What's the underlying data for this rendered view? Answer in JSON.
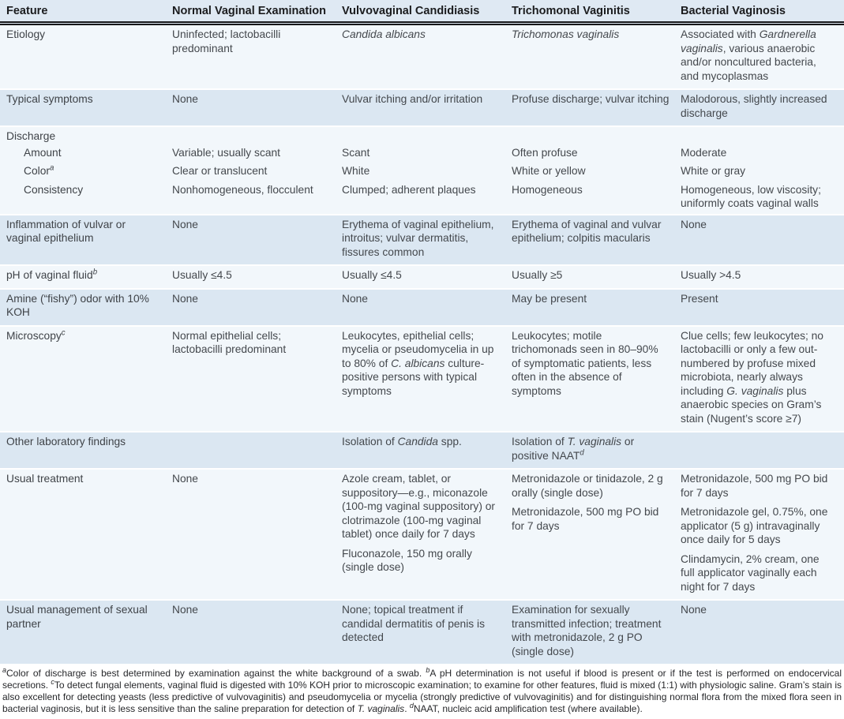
{
  "colors": {
    "header_background": "#dfe9f3",
    "row_blue": "#dbe7f2",
    "row_light": "#f2f7fb",
    "rule": "#17181a",
    "body_text": "#44484d",
    "header_text": "#1b1c1e"
  },
  "table": {
    "columns": [
      {
        "id": "feature",
        "label": "Feature"
      },
      {
        "id": "normal-vaginal-examination",
        "label": "Normal Vaginal Examination"
      },
      {
        "id": "vulvovaginal-candidiasis",
        "label": "Vulvovaginal Candidiasis"
      },
      {
        "id": "trichomonal-vaginitis",
        "label": "Trichomonal Vaginitis"
      },
      {
        "id": "bacterial-vaginosis",
        "label": "Bacterial Vaginosis"
      }
    ],
    "rows": [
      {
        "feature": "Etiology",
        "sub": false,
        "sep": false,
        "group_head": false,
        "shade": "light",
        "cells": [
          "Uninfected; lactobacilli predominant",
          "*Candida albicans*",
          "*Trichomonas vaginalis*",
          "Associated with *Gardnerella vaginalis*, various anaerobic and/or noncultured bacteria, and mycoplasmas"
        ]
      },
      {
        "feature": "Typical symptoms",
        "sub": false,
        "sep": true,
        "group_head": false,
        "shade": "blue",
        "cells": [
          "None",
          "Vulvar itching and/or irritation",
          "Profuse discharge; vulvar itching",
          "Malodorous, slightly increased discharge"
        ]
      },
      {
        "feature": "Discharge",
        "sub": false,
        "sep": true,
        "group_head": true,
        "shade": "light",
        "cells": [
          "",
          "",
          "",
          ""
        ]
      },
      {
        "feature": "Amount",
        "sub": true,
        "sep": false,
        "group_head": false,
        "shade": "light",
        "cells": [
          "Variable; usually scant",
          "Scant",
          "Often profuse",
          "Moderate"
        ]
      },
      {
        "feature": "Color^a^",
        "sub": true,
        "sep": false,
        "group_head": false,
        "shade": "light",
        "cells": [
          "Clear or translucent",
          "White",
          "White or yellow",
          "White or gray"
        ]
      },
      {
        "feature": "Consistency",
        "sub": true,
        "sep": false,
        "group_head": false,
        "shade": "light",
        "cells": [
          "Nonhomogeneous, flocculent",
          "Clumped; adherent plaques",
          "Homogeneous",
          "Homogeneous, low viscosity; uniformly coats vaginal walls"
        ]
      },
      {
        "feature": "Inflammation of vulvar or vaginal epithelium",
        "sub": false,
        "sep": true,
        "group_head": false,
        "shade": "blue",
        "cells": [
          "None",
          "Erythema of vaginal epithelium, introitus; vulvar dermatitis, fissures common",
          "Erythema of vaginal and vulvar epithelium; colpitis macularis",
          "None"
        ]
      },
      {
        "feature": "pH of vaginal fluid^b^",
        "sub": false,
        "sep": true,
        "group_head": false,
        "shade": "light",
        "cells": [
          "Usually ≤4.5",
          "Usually ≤4.5",
          "Usually ≥5",
          "Usually >4.5"
        ]
      },
      {
        "feature": "Amine (“fishy”) odor with 10% KOH",
        "sub": false,
        "sep": true,
        "group_head": false,
        "shade": "blue",
        "cells": [
          "None",
          "None",
          "May be present",
          "Present"
        ]
      },
      {
        "feature": "Microscopy^c^",
        "sub": false,
        "sep": true,
        "group_head": false,
        "shade": "light",
        "cells": [
          "Normal epithelial cells; lactobacilli predominant",
          "Leukocytes, epithelial cells; mycelia or pseudomycelia in up to 80% of *C. albicans* culture-positive persons with typical symptoms",
          "Leukocytes; motile trichomonads seen in 80–90% of symptomatic patients, less often in the absence of symptoms",
          "Clue cells; few leukocytes; no lactobacilli or only a few out-numbered by profuse mixed microbiota, nearly always including *G. vaginalis* plus anaerobic species on Gram’s stain (Nugent’s score ≥7)"
        ]
      },
      {
        "feature": "Other laboratory findings",
        "sub": false,
        "sep": true,
        "group_head": false,
        "shade": "blue",
        "cells": [
          "",
          "Isolation of *Candida* spp.",
          "Isolation of *T. vaginalis* or positive NAAT^d^",
          ""
        ]
      },
      {
        "feature": "Usual treatment",
        "sub": false,
        "sep": true,
        "group_head": false,
        "shade": "light",
        "cells": [
          "None",
          [
            "Azole cream, tablet, or suppository—e.g., miconazole (100-mg vaginal suppository) or clotrimazole (100-mg vaginal tablet) once daily for 7 days",
            "Fluconazole, 150 mg orally (single dose)"
          ],
          [
            "Metronidazole or tinidazole, 2 g orally (single dose)",
            "Metronidazole, 500 mg PO bid for 7 days"
          ],
          [
            "Metronidazole, 500 mg PO bid for 7 days",
            "Metronidazole gel, 0.75%, one applicator (5 g) intravaginally once daily for 5 days",
            "Clindamycin, 2% cream, one full applicator vaginally each night for 7 days"
          ]
        ]
      },
      {
        "feature": "Usual management of sexual partner",
        "sub": false,
        "sep": true,
        "group_head": false,
        "shade": "blue",
        "cells": [
          "None",
          "None; topical treatment if candidal dermatitis of penis is detected",
          "Examination for sexually transmitted infection; treatment with metronidazole, 2 g PO (single dose)",
          "None"
        ]
      }
    ]
  },
  "footnotes": "^a^Color of discharge is best determined by examination against the white background of a swab.  ^b^A pH determination is not useful if blood is present or if the test is performed on endocervical secretions.  ^c^To detect fungal elements, vaginal fluid is digested with 10% KOH prior to microscopic examination; to examine for other features, fluid is mixed (1:1) with physiologic saline. Gram’s stain is also excellent for detecting yeasts (less predictive of vulvovaginitis) and pseudomycelia or mycelia (strongly predictive of vulvovaginitis) and for distinguishing normal flora from the mixed flora seen in bacterial vaginosis, but it is less sensitive than the saline preparation for detection of *T. vaginalis*.  ^d^NAAT, nucleic acid amplification test (where available)."
}
